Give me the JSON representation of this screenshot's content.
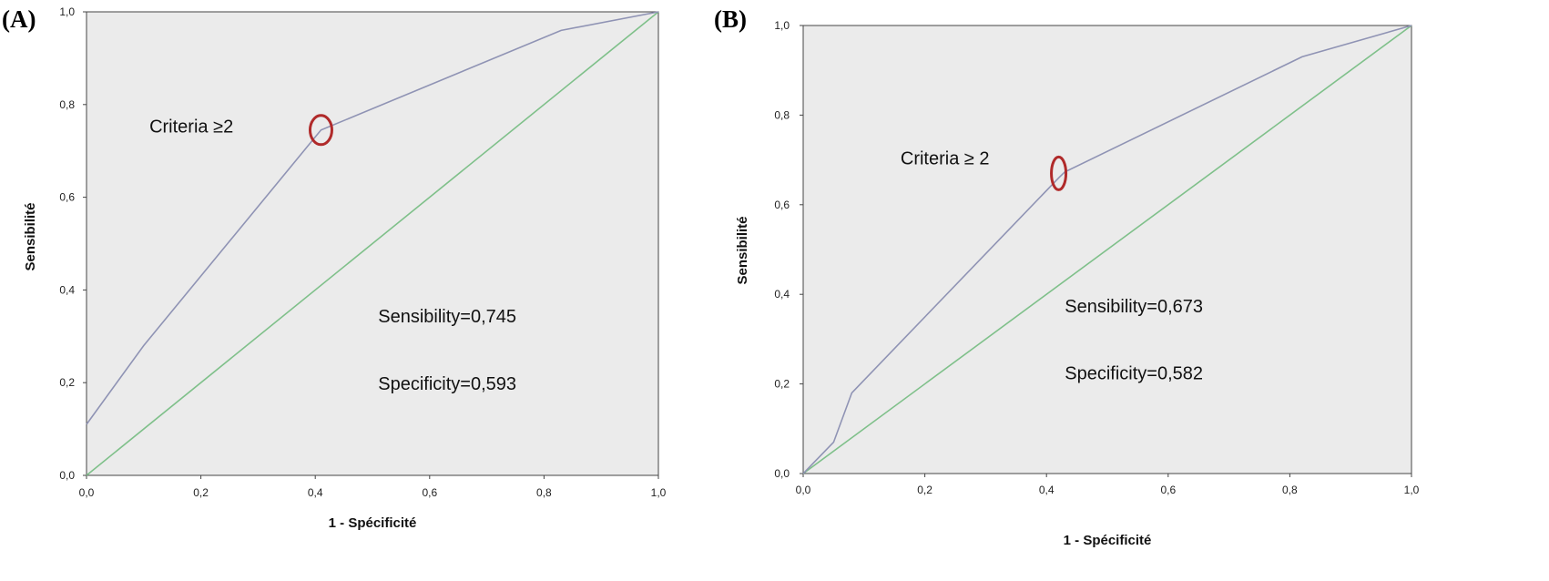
{
  "chart_data": [
    {
      "type": "line",
      "panel_label": "(A)",
      "xlabel": "1 - Spécificité",
      "ylabel": "Sensibilité",
      "xlim": [
        0,
        1
      ],
      "ylim": [
        0,
        1
      ],
      "x_ticks": [
        "0,0",
        "0,2",
        "0,4",
        "0,6",
        "0,8",
        "1,0"
      ],
      "y_ticks": [
        "0,0",
        "0,2",
        "0,4",
        "0,6",
        "0,8",
        "1,0"
      ],
      "grid": false,
      "plot_background": "#ebebeb",
      "series": [
        {
          "color": "#8f93b4",
          "x": [
            0,
            0.1,
            0.4,
            0.41,
            0.83,
            1.0
          ],
          "y": [
            0.11,
            0.28,
            0.73,
            0.745,
            0.96,
            1.0
          ]
        },
        {
          "color": "#7fc08a",
          "x": [
            0,
            1
          ],
          "y": [
            0,
            1
          ]
        }
      ],
      "highlight_point": {
        "x": 0.41,
        "y": 0.745,
        "color": "#b02a2a"
      },
      "annotations": [
        {
          "text": "Criteria ≥2",
          "x": 0.11,
          "y": 0.74
        },
        {
          "text": "Sensibility=0,745",
          "x": 0.51,
          "y": 0.33
        },
        {
          "text": "Specificity=0,593",
          "x": 0.51,
          "y": 0.185
        }
      ]
    },
    {
      "type": "line",
      "panel_label": "(B)",
      "xlabel": "1 - Spécificité",
      "ylabel": "Sensibilité",
      "xlim": [
        0,
        1
      ],
      "ylim": [
        0,
        1
      ],
      "x_ticks": [
        "0,0",
        "0,2",
        "0,4",
        "0,6",
        "0,8",
        "1,0"
      ],
      "y_ticks": [
        "0,0",
        "0,2",
        "0,4",
        "0,6",
        "0,8",
        "1,0"
      ],
      "grid": false,
      "plot_background": "#ebebeb",
      "series": [
        {
          "color": "#8f93b4",
          "x": [
            0,
            0.05,
            0.08,
            0.42,
            0.43,
            0.82,
            1.0
          ],
          "y": [
            0,
            0.07,
            0.18,
            0.66,
            0.673,
            0.93,
            1.0
          ]
        },
        {
          "color": "#7fc08a",
          "x": [
            0,
            1
          ],
          "y": [
            0,
            1
          ]
        }
      ],
      "highlight_point": {
        "x": 0.42,
        "y": 0.67,
        "color": "#b02a2a"
      },
      "annotations": [
        {
          "text": "Criteria ≥ 2",
          "x": 0.16,
          "y": 0.69
        },
        {
          "text": "Sensibility=0,673",
          "x": 0.43,
          "y": 0.36
        },
        {
          "text": "Specificity=0,582",
          "x": 0.43,
          "y": 0.21
        }
      ]
    }
  ]
}
